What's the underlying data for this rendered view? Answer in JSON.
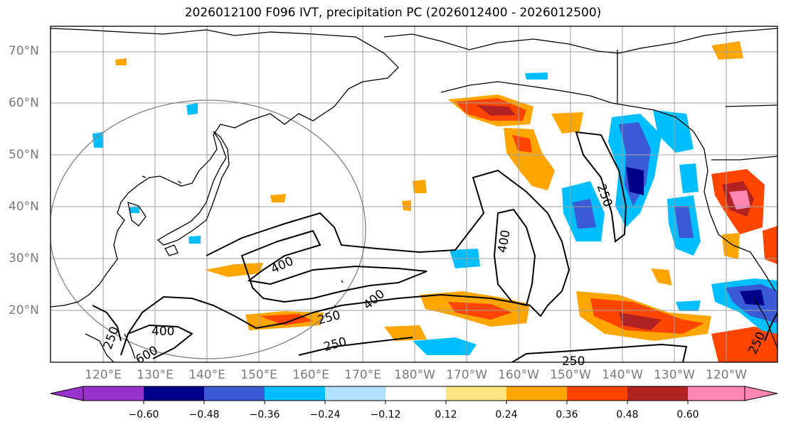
{
  "title": "2026012100 F096 IVT, precipitation PC (2026012400 - 2026012500)",
  "map": {
    "lat_labels": [
      "70°N",
      "60°N",
      "50°N",
      "40°N",
      "30°N",
      "20°N"
    ],
    "lon_labels": [
      "120°E",
      "130°E",
      "140°E",
      "150°E",
      "160°E",
      "170°E",
      "180°W",
      "170°W",
      "160°W",
      "150°W",
      "140°W",
      "130°W",
      "120°W"
    ],
    "contour_labels": [
      "400",
      "250",
      "400",
      "400",
      "250",
      "400",
      "600",
      "250",
      "250",
      "250",
      "250"
    ],
    "contour_color": "#000000",
    "grid_color": "#9e9e9e",
    "land_outline_color": "#000000"
  },
  "colorbar": {
    "ticks": [
      "−0.60",
      "−0.48",
      "−0.36",
      "−0.24",
      "−0.12",
      "0.12",
      "0.24",
      "0.36",
      "0.48",
      "0.60"
    ],
    "colors": [
      "#9932cc",
      "#00008b",
      "#3a5bd6",
      "#00bfff",
      "#b0e2ff",
      "#ffffff",
      "#ffe680",
      "#ffa500",
      "#ff4500",
      "#b22222",
      "#ff85b3"
    ]
  }
}
